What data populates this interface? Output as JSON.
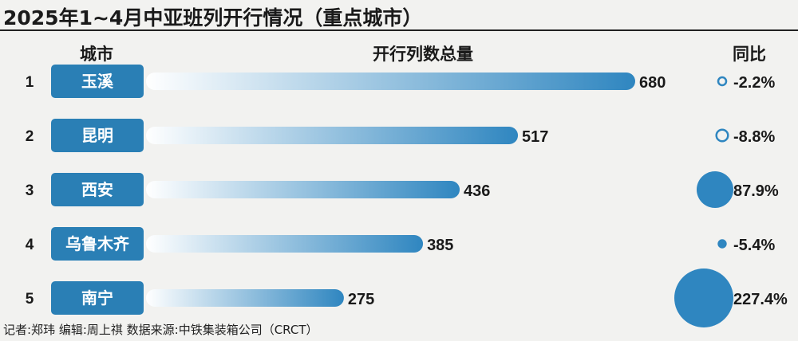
{
  "title": "2025年1~4月中亚班列开行情况（重点城市）",
  "headers": {
    "city": "城市",
    "total": "开行列数总量",
    "yoy": "同比"
  },
  "footer": "记者:郑玮  编辑:周上祺  数据来源:中铁集装箱公司（CRCT）",
  "colors": {
    "accent": "#2f86c0",
    "label_box": "#2a7fb5",
    "bar_start": "#ffffff",
    "bar_end": "#2f86c0"
  },
  "chart_data": {
    "type": "bar",
    "orientation": "horizontal",
    "categories": [
      "玉溪",
      "昆明",
      "西安",
      "乌鲁木齐",
      "南宁"
    ],
    "ranks": [
      "1",
      "2",
      "3",
      "4",
      "5"
    ],
    "values": [
      680,
      517,
      436,
      385,
      275
    ],
    "value_labels": [
      "680",
      "517",
      "436",
      "385",
      "275"
    ],
    "yoy": [
      -2.2,
      -8.8,
      87.9,
      -5.4,
      227.4
    ],
    "yoy_labels": [
      "-2.2%",
      "-8.8%",
      "87.9%",
      "-5.4%",
      "227.4%"
    ],
    "yoy_marker": "circle area proportional to |yoy|; hollow circle = decrease, filled circle = increase (except -5.4% shown filled)",
    "yoy_filled": [
      false,
      false,
      true,
      true,
      true
    ],
    "xlim": [
      0,
      680
    ],
    "grid": false,
    "legend": "none"
  }
}
